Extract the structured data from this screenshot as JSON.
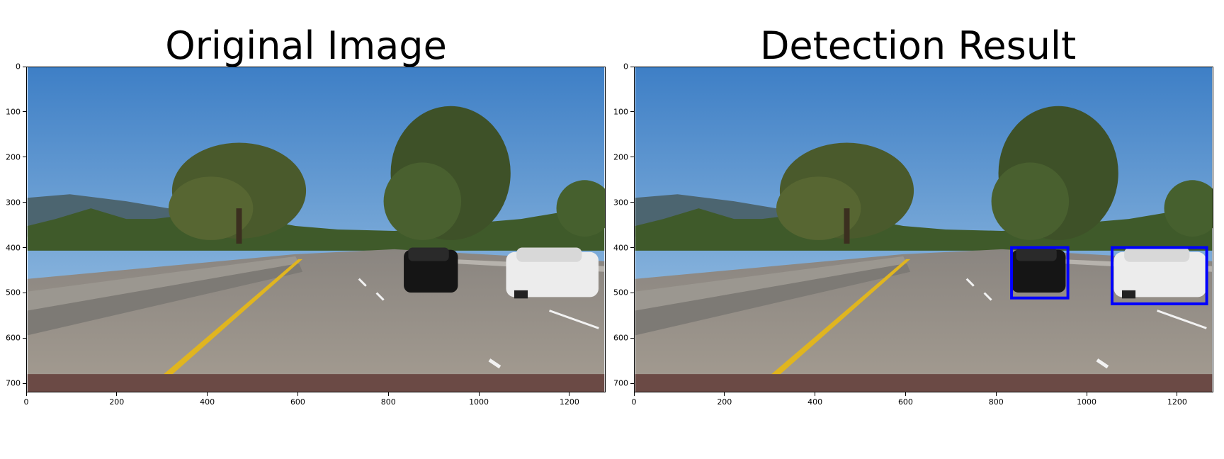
{
  "figure": {
    "panels": [
      {
        "title": "Original Image",
        "detections": []
      },
      {
        "title": "Detection Result",
        "detections": [
          {
            "label": "car-black",
            "x1": 835,
            "y1": 400,
            "x2": 960,
            "y2": 512
          },
          {
            "label": "car-white",
            "x1": 1058,
            "y1": 400,
            "x2": 1268,
            "y2": 525
          }
        ]
      }
    ],
    "image_extent": {
      "width": 1280,
      "height": 720
    },
    "x_ticks": [
      "0",
      "200",
      "400",
      "600",
      "800",
      "1000",
      "1200"
    ],
    "y_ticks": [
      "0",
      "100",
      "200",
      "300",
      "400",
      "500",
      "600",
      "700"
    ],
    "box_color": "#0000ff"
  }
}
